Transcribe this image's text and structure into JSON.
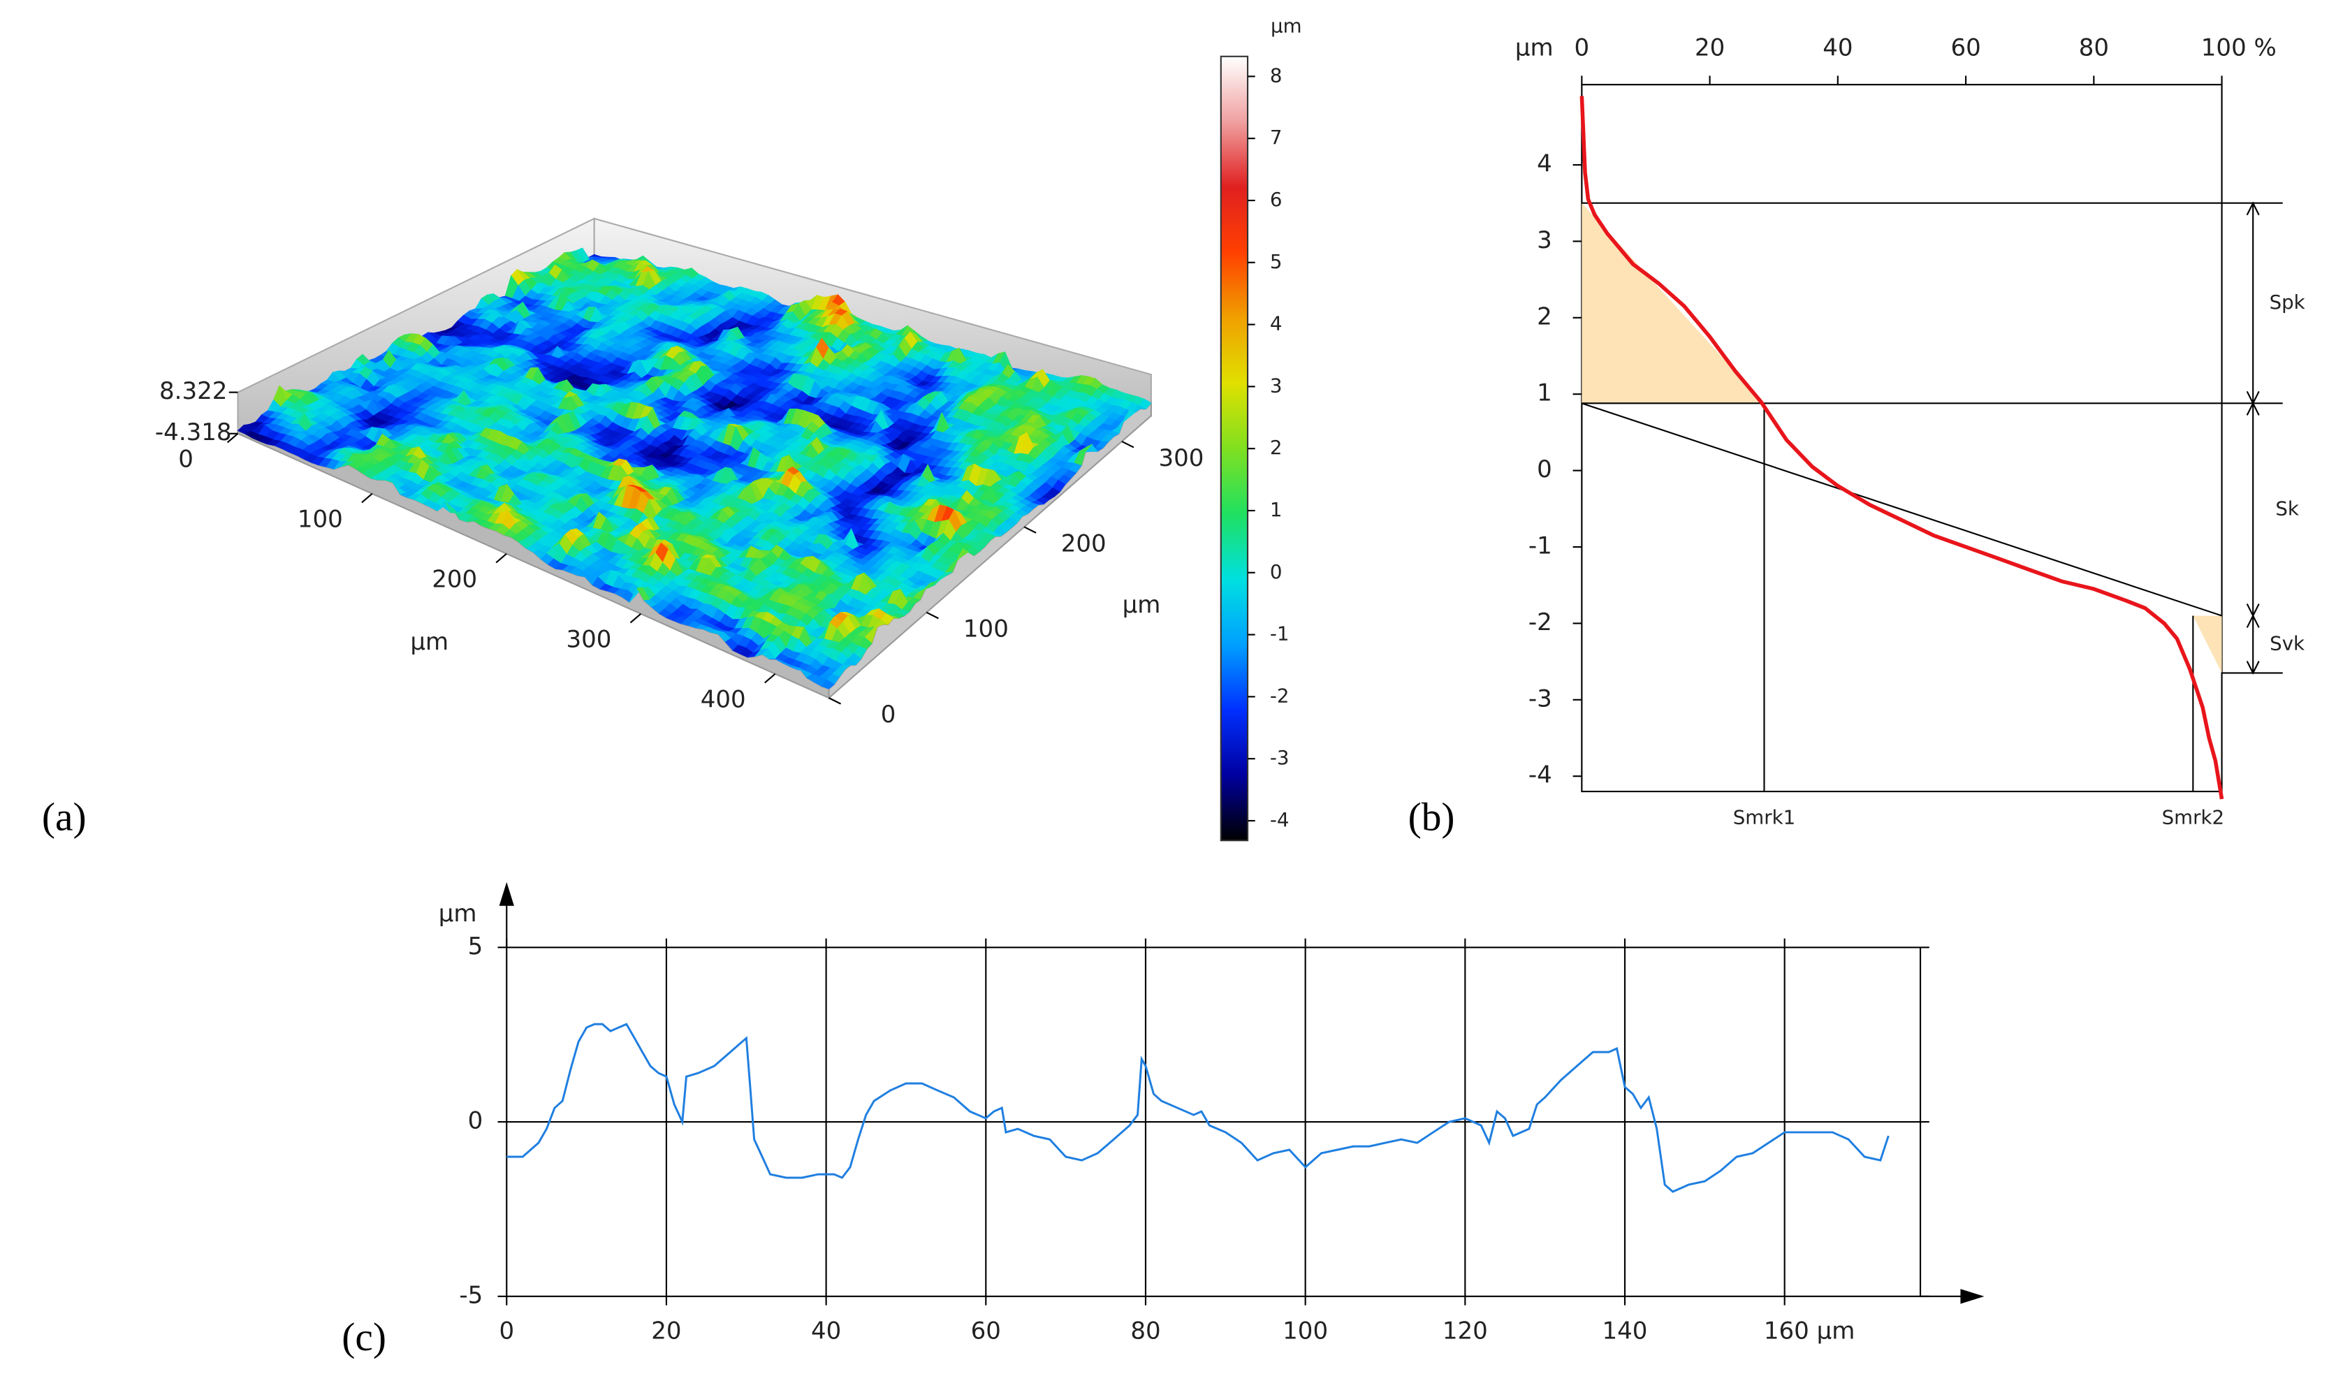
{
  "chart_data": [
    {
      "type": "surface3d",
      "panel_label": "(a)",
      "x_label": "µm",
      "y_label": "µm",
      "xlim": [
        0,
        440
      ],
      "ylim": [
        0,
        330
      ],
      "xticks": [
        0,
        100,
        200,
        300,
        400
      ],
      "yticks": [
        0,
        100,
        200,
        300
      ],
      "zlim": [
        -4.318,
        8.322
      ],
      "zticks": [
        8.322,
        -4.318
      ],
      "colorbar": {
        "label": "µm",
        "lim": [
          -4.318,
          8.322
        ],
        "ticks": [
          -4,
          -3,
          -2,
          -1,
          0,
          1,
          2,
          3,
          4,
          5,
          6,
          7,
          8
        ],
        "colormap": [
          "#000000",
          "#0000a0",
          "#0030ff",
          "#00a0ff",
          "#00e0e0",
          "#20e060",
          "#80e020",
          "#e0e000",
          "#f0a000",
          "#ff4000",
          "#e02020",
          "#f0a0a0",
          "#ffffff"
        ]
      }
    },
    {
      "type": "abbott",
      "panel_label": "(b)",
      "y_label": "µm",
      "color": "#e8151b",
      "fill_color": "#fde3b6",
      "xlim": [
        0,
        100
      ],
      "ylim": [
        -4.2,
        5.05
      ],
      "xticks": [
        0,
        20,
        40,
        60,
        80,
        {
          "value": 100,
          "label": "100 %"
        }
      ],
      "yticks": [
        -4,
        -3,
        -2,
        -1,
        0,
        1,
        2,
        3,
        4
      ],
      "x": [
        0,
        0.5,
        1,
        2,
        4,
        8,
        12,
        16,
        20,
        24,
        28,
        32,
        36,
        40,
        45,
        50,
        55,
        60,
        65,
        70,
        75,
        80,
        85,
        88,
        91,
        93,
        95,
        97,
        98,
        99,
        100
      ],
      "values": [
        4.9,
        3.9,
        3.55,
        3.35,
        3.1,
        2.7,
        2.45,
        2.15,
        1.75,
        1.3,
        0.9,
        0.4,
        0.05,
        -0.2,
        -0.45,
        -0.65,
        -0.85,
        -1.0,
        -1.15,
        -1.3,
        -1.45,
        -1.55,
        -1.7,
        -1.8,
        -2.0,
        -2.2,
        -2.6,
        -3.1,
        -3.5,
        -3.8,
        -4.3
      ],
      "parameters": [
        {
          "label": "Spk",
          "from": 3.5,
          "to": 0.88
        },
        {
          "label": "Sk",
          "from": 0.88,
          "to": -1.9
        },
        {
          "label": "Svk",
          "from": -1.9,
          "to": -2.65
        }
      ],
      "material_ratios": [
        {
          "label": "Smrk1",
          "value": 28.5
        },
        {
          "label": "Smrk2",
          "value": 95.5
        }
      ]
    },
    {
      "type": "line",
      "panel_label": "(c)",
      "y_label": "µm",
      "color": "#1f7fe0",
      "grid": "x",
      "xlim": [
        0,
        177
      ],
      "ylim": [
        -5,
        5
      ],
      "xticks": [
        0,
        20,
        40,
        60,
        80,
        100,
        120,
        140,
        {
          "value": 160,
          "label": "160 µm"
        }
      ],
      "yticks": [
        -5,
        0,
        5
      ],
      "x": [
        0,
        2,
        4,
        5,
        6,
        7,
        8,
        9,
        10,
        11,
        12,
        13,
        14,
        15,
        16,
        17,
        18,
        19,
        20,
        21,
        22,
        22.5,
        24,
        26,
        28,
        29,
        30,
        30.5,
        31,
        32,
        33,
        35,
        37,
        39,
        41,
        42,
        43,
        44,
        45,
        46,
        48,
        50,
        52,
        54,
        56,
        58,
        60,
        61,
        62,
        62.5,
        64,
        66,
        68,
        70,
        72,
        74,
        76,
        78,
        79,
        79.5,
        80,
        81,
        82,
        84,
        86,
        87,
        88,
        90,
        92,
        94,
        96,
        98,
        100,
        102,
        104,
        106,
        108,
        110,
        112,
        114,
        116,
        118,
        120,
        122,
        123,
        124,
        125,
        126,
        128,
        129,
        130,
        132,
        134,
        136,
        138,
        139,
        140,
        141,
        142,
        143,
        144,
        145,
        146,
        148,
        150,
        152,
        154,
        156,
        158,
        160,
        162,
        164,
        166,
        168,
        170,
        172,
        173
      ],
      "values": [
        -1.0,
        -1.0,
        -0.6,
        -0.2,
        0.4,
        0.6,
        1.5,
        2.3,
        2.7,
        2.8,
        2.8,
        2.6,
        2.7,
        2.8,
        2.4,
        2.0,
        1.6,
        1.4,
        1.3,
        0.5,
        0.0,
        1.3,
        1.4,
        1.6,
        2.0,
        2.2,
        2.4,
        1.0,
        -0.5,
        -1.0,
        -1.5,
        -1.6,
        -1.6,
        -1.5,
        -1.5,
        -1.6,
        -1.3,
        -0.5,
        0.2,
        0.6,
        0.9,
        1.1,
        1.1,
        0.9,
        0.7,
        0.3,
        0.1,
        0.3,
        0.4,
        -0.3,
        -0.2,
        -0.4,
        -0.5,
        -1.0,
        -1.1,
        -0.9,
        -0.5,
        -0.1,
        0.2,
        1.8,
        1.6,
        0.8,
        0.6,
        0.4,
        0.2,
        0.3,
        -0.1,
        -0.3,
        -0.6,
        -1.1,
        -0.9,
        -0.8,
        -1.3,
        -0.9,
        -0.8,
        -0.7,
        -0.7,
        -0.6,
        -0.5,
        -0.6,
        -0.3,
        0.0,
        0.1,
        -0.1,
        -0.6,
        0.3,
        0.1,
        -0.4,
        -0.2,
        0.5,
        0.7,
        1.2,
        1.6,
        2.0,
        2.0,
        2.1,
        1.0,
        0.8,
        0.4,
        0.7,
        -0.2,
        -1.8,
        -2.0,
        -1.8,
        -1.7,
        -1.4,
        -1.0,
        -0.9,
        -0.6,
        -0.3,
        -0.3,
        -0.3,
        -0.3,
        -0.5,
        -1.0,
        -1.1,
        -0.4
      ]
    }
  ]
}
